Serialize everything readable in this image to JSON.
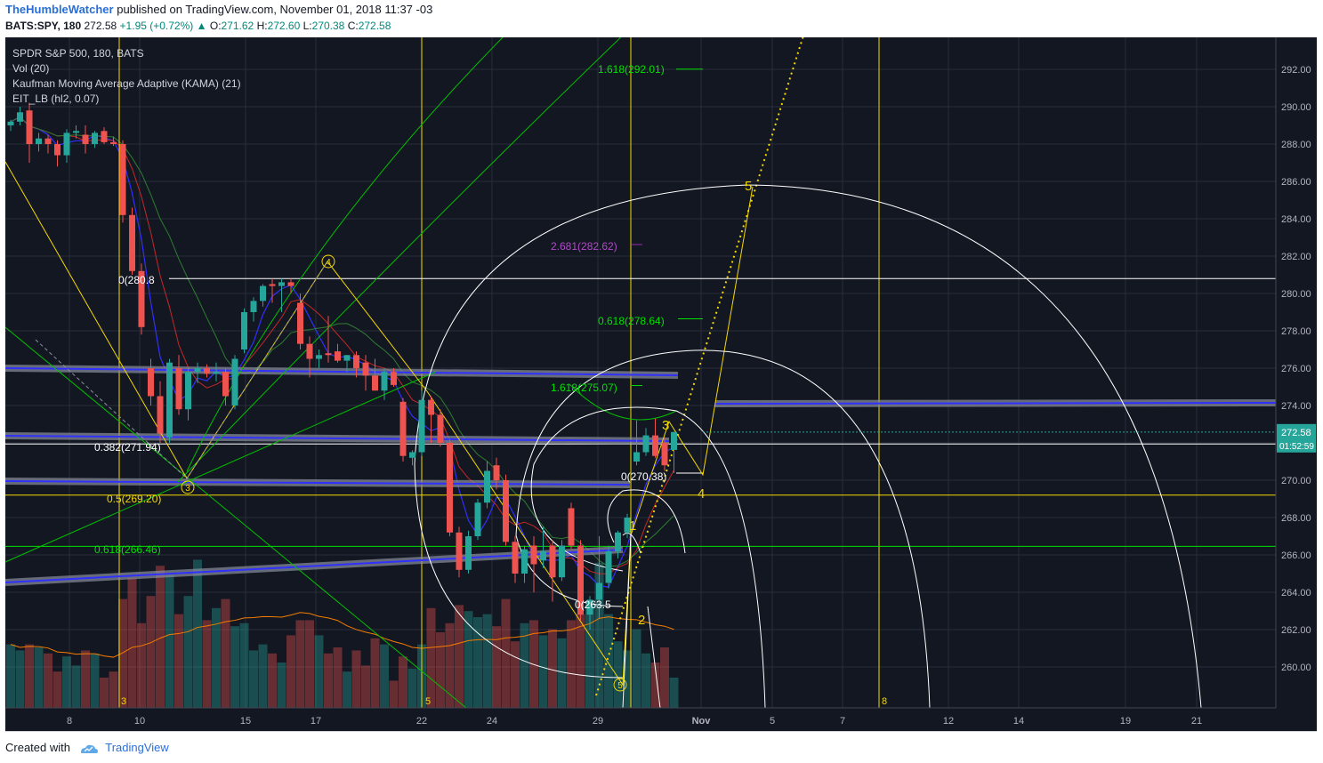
{
  "header": {
    "publisher": "TheHumbleWatcher",
    "published_text": "published on TradingView.com, November 01, 2018 11:37 -03",
    "symbol": "BATS:SPY, 180",
    "last": "272.58",
    "change": "+1.95 (+0.72%)",
    "o_label": "O:",
    "o_value": "271.62",
    "h_label": "H:",
    "h_value": "272.60",
    "l_label": "L:",
    "l_value": "270.38",
    "c_label": "C:",
    "c_value": "272.58"
  },
  "legend": {
    "line1": "SPDR S&P 500, 180, BATS",
    "line2": "Vol (20)",
    "line3": "Kaufman Moving Average Adaptive (KAMA) (21)",
    "line4": "EIT_LB (hl2, 0.07)"
  },
  "footer": {
    "created_with": "Created with",
    "brand": "TradingView"
  },
  "colors": {
    "bg": "#131722",
    "up": "#26a69a",
    "down": "#ef5350",
    "fib_yellow": "#f5d800",
    "fib_green": "#00e000",
    "purple": "#9c27b0",
    "blue": "#3030ff"
  },
  "chart_data": {
    "type": "candlestick",
    "y_axis": {
      "min": 258,
      "max": 293,
      "ticks": [
        "292.00",
        "290.00",
        "288.00",
        "286.00",
        "284.00",
        "282.00",
        "280.00",
        "278.00",
        "276.00",
        "274.00",
        "272.00",
        "270.00",
        "268.00",
        "266.00",
        "264.00",
        "262.00",
        "260.00"
      ]
    },
    "x_axis": {
      "ticks": [
        "8",
        "10",
        "15",
        "17",
        "22",
        "24",
        "29",
        "Nov",
        "5",
        "7",
        "12",
        "14",
        "19",
        "21"
      ]
    },
    "price_label": "272.58",
    "countdown_label": "01:52:59",
    "fib_labels": [
      {
        "text": "1.618(292.01)",
        "price": 292.01,
        "color": "green"
      },
      {
        "text": "2.681(282.62)",
        "price": 282.62,
        "color": "purple"
      },
      {
        "text": "0(280.8",
        "price": 280.8,
        "color": "white"
      },
      {
        "text": "0.618(278.64)",
        "price": 278.64,
        "color": "green"
      },
      {
        "text": "1.618(275.07)",
        "price": 275.07,
        "color": "green"
      },
      {
        "text": "0.382(271.94)",
        "price": 271.94,
        "color": "white"
      },
      {
        "text": "0(270.38)",
        "price": 270.38,
        "color": "white"
      },
      {
        "text": "0.5(269.20)",
        "price": 269.2,
        "color": "yellow"
      },
      {
        "text": "0.618(266.46)",
        "price": 266.46,
        "color": "green"
      },
      {
        "text": "0(263.5",
        "price": 263.5,
        "color": "white"
      }
    ],
    "wave_labels": [
      "1",
      "2",
      "3",
      "4",
      "5"
    ],
    "circled_labels": [
      "3",
      "4",
      "5"
    ],
    "time_labels": [
      "3",
      "5",
      "8"
    ],
    "candles": [
      [
        289.0,
        289.3,
        288.7,
        289.2
      ],
      [
        289.2,
        290.0,
        289.0,
        289.7
      ],
      [
        289.8,
        290.2,
        287.0,
        288.0
      ],
      [
        288.0,
        288.6,
        287.6,
        288.3
      ],
      [
        288.3,
        288.5,
        287.5,
        288.0
      ],
      [
        288.0,
        288.2,
        286.8,
        287.4
      ],
      [
        287.4,
        288.8,
        287.0,
        288.6
      ],
      [
        288.6,
        289.0,
        288.3,
        288.7
      ],
      [
        288.5,
        289.0,
        287.5,
        288.0
      ],
      [
        288.0,
        288.7,
        287.8,
        288.6
      ],
      [
        288.7,
        288.9,
        288.0,
        288.1
      ],
      [
        288.1,
        288.4,
        287.9,
        288.0
      ],
      [
        288.0,
        288.2,
        283.8,
        284.2
      ],
      [
        284.2,
        284.6,
        281.0,
        281.2
      ],
      [
        281.2,
        281.6,
        277.8,
        278.2
      ],
      [
        276.0,
        276.5,
        274.0,
        274.5
      ],
      [
        274.5,
        275.3,
        272.0,
        272.5
      ],
      [
        272.3,
        276.5,
        272.0,
        276.3
      ],
      [
        276.0,
        276.7,
        273.5,
        273.8
      ],
      [
        273.8,
        276.0,
        273.2,
        275.8
      ],
      [
        275.8,
        276.3,
        275.2,
        276.0
      ],
      [
        276.0,
        276.2,
        275.5,
        275.7
      ],
      [
        275.7,
        276.3,
        275.3,
        275.8
      ],
      [
        275.8,
        276.0,
        274.0,
        274.5
      ],
      [
        274.0,
        276.7,
        273.8,
        276.5
      ],
      [
        277.0,
        279.2,
        276.8,
        279.0
      ],
      [
        279.0,
        279.8,
        278.5,
        279.6
      ],
      [
        279.6,
        280.5,
        279.3,
        280.4
      ],
      [
        280.5,
        280.8,
        279.5,
        280.4
      ],
      [
        280.4,
        280.8,
        279.0,
        280.6
      ],
      [
        280.6,
        280.8,
        280.0,
        280.4
      ],
      [
        279.5,
        280.0,
        277.0,
        277.3
      ],
      [
        277.3,
        277.7,
        275.5,
        276.5
      ],
      [
        276.5,
        277.0,
        276.0,
        276.7
      ],
      [
        276.8,
        278.8,
        276.3,
        276.7
      ],
      [
        276.9,
        277.3,
        276.3,
        276.4
      ],
      [
        276.4,
        276.7,
        275.8,
        276.7
      ],
      [
        276.7,
        276.9,
        275.5,
        276.0
      ],
      [
        276.3,
        276.7,
        274.8,
        275.6
      ],
      [
        275.6,
        276.5,
        274.8,
        274.8
      ],
      [
        274.8,
        276.0,
        274.3,
        275.8
      ],
      [
        275.8,
        276.0,
        275.0,
        275.1
      ],
      [
        274.2,
        274.4,
        271.0,
        271.3
      ],
      [
        271.2,
        271.6,
        270.8,
        271.5
      ],
      [
        271.5,
        274.8,
        271.3,
        274.3
      ],
      [
        274.3,
        274.5,
        272.0,
        273.5
      ],
      [
        273.5,
        273.8,
        271.8,
        272.0
      ],
      [
        272.0,
        272.2,
        267.0,
        267.2
      ],
      [
        267.2,
        267.5,
        264.8,
        265.2
      ],
      [
        265.2,
        267.3,
        265.0,
        267.0
      ],
      [
        267.0,
        269.0,
        266.8,
        268.8
      ],
      [
        268.8,
        271.0,
        268.5,
        270.5
      ],
      [
        270.8,
        271.2,
        269.5,
        270.0
      ],
      [
        270.0,
        270.3,
        266.5,
        266.7
      ],
      [
        266.7,
        267.0,
        264.5,
        265.0
      ],
      [
        265.0,
        266.5,
        264.5,
        266.3
      ],
      [
        266.5,
        267.0,
        264.0,
        265.5
      ],
      [
        265.7,
        267.5,
        265.3,
        266.2
      ],
      [
        266.5,
        266.8,
        263.5,
        264.8
      ],
      [
        264.8,
        266.8,
        264.6,
        266.5
      ],
      [
        268.5,
        268.8,
        266.3,
        266.5
      ],
      [
        266.5,
        266.8,
        262.5,
        262.8
      ],
      [
        262.8,
        263.8,
        262.0,
        263.6
      ],
      [
        263.6,
        267.0,
        262.6,
        264.5
      ],
      [
        264.5,
        266.5,
        264.2,
        266.2
      ],
      [
        266.2,
        267.3,
        265.8,
        267.2
      ],
      [
        267.2,
        268.2,
        266.9,
        268.0
      ],
      [
        271.0,
        273.2,
        270.8,
        271.5
      ],
      [
        271.5,
        272.8,
        271.3,
        272.4
      ],
      [
        272.4,
        273.3,
        271.2,
        271.3
      ],
      [
        272.0,
        272.3,
        270.5,
        270.8
      ],
      [
        271.62,
        272.6,
        270.38,
        272.58
      ]
    ],
    "volume_rel": [
      0.42,
      0.38,
      0.42,
      0.4,
      0.36,
      0.24,
      0.34,
      0.28,
      0.38,
      0.36,
      0.2,
      0.24,
      0.72,
      0.86,
      0.56,
      0.74,
      0.94,
      0.88,
      0.62,
      0.74,
      0.98,
      0.58,
      0.66,
      0.72,
      0.54,
      0.56,
      0.38,
      0.42,
      0.36,
      0.3,
      0.48,
      0.58,
      0.58,
      0.48,
      0.36,
      0.4,
      0.24,
      0.38,
      0.28,
      0.46,
      0.42,
      0.18,
      0.34,
      0.26,
      0.42,
      0.66,
      0.5,
      0.56,
      0.68,
      0.64,
      0.6,
      0.62,
      0.54,
      0.72,
      0.44,
      0.56,
      0.58,
      0.48,
      0.52,
      0.46,
      0.58,
      0.62,
      0.7,
      0.96,
      0.62,
      0.44,
      0.38,
      0.52,
      0.36,
      0.3,
      0.4,
      0.2
    ]
  }
}
